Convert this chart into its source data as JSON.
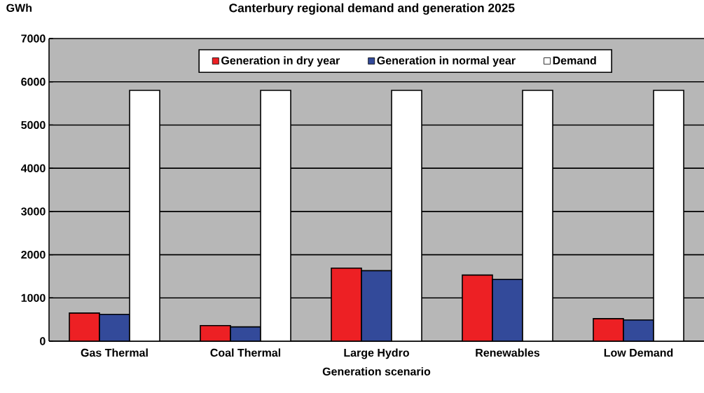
{
  "chart_data": {
    "type": "bar",
    "title": "Canterbury regional demand and generation 2025",
    "xlabel": "Generation scenario",
    "ylabel": "GWh",
    "categories": [
      "Gas Thermal",
      "Coal Thermal",
      "Large Hydro",
      "Renewables",
      "Low Demand"
    ],
    "series": [
      {
        "name": "Generation in dry year",
        "color": "#ed2024",
        "values": [
          650,
          360,
          1690,
          1530,
          520
        ]
      },
      {
        "name": "Generation in normal year",
        "color": "#334a9a",
        "values": [
          620,
          330,
          1630,
          1430,
          490
        ]
      },
      {
        "name": "Demand",
        "color": "#ffffff",
        "values": [
          5800,
          5800,
          5800,
          5800,
          5800
        ]
      }
    ],
    "ylim": [
      0,
      7000
    ],
    "yticks": [
      0,
      1000,
      2000,
      3000,
      4000,
      5000,
      6000,
      7000
    ],
    "grid": "y",
    "legend": "top"
  }
}
